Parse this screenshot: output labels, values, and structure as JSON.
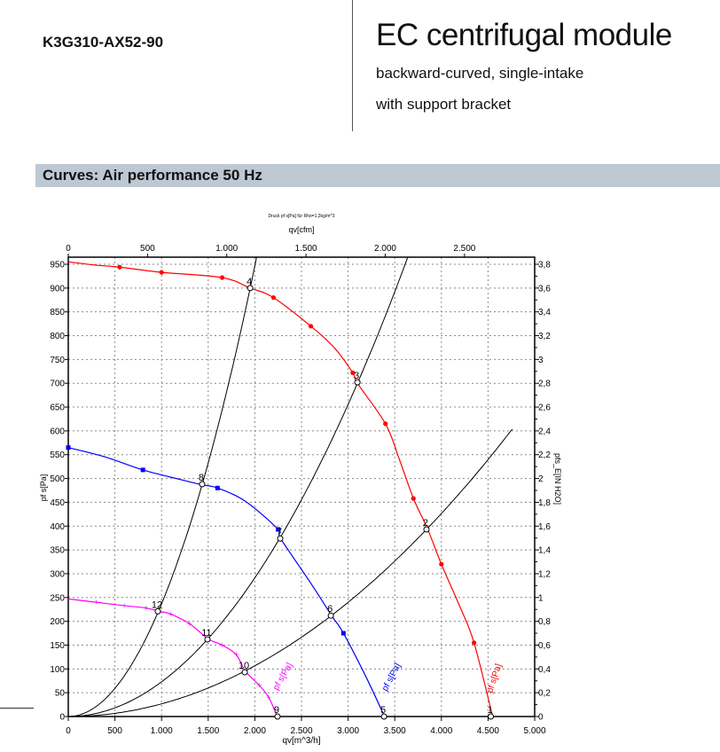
{
  "header": {
    "model": "K3G310-AX52-90",
    "title": "EC centrifugal module",
    "subtitle1": "backward-curved, single-intake",
    "subtitle2": "with support bracket"
  },
  "section": {
    "title": "Curves: Air performance 50 Hz"
  },
  "chart_data": {
    "type": "line",
    "title": "Druck pf s[Pa] für Rho=1,2kg/m^3",
    "xlabel": "qv[m^3/h]",
    "x2label": "qv[cfm]",
    "ylabel": "pf s[Pa]",
    "y2label": "pfs_E[IN H2O]",
    "xlim": [
      0,
      5000
    ],
    "ylim": [
      0,
      950
    ],
    "x2lim": [
      0,
      2943
    ],
    "y2lim": [
      0,
      3.8
    ],
    "xticks": [
      "0",
      "500",
      "1.000",
      "1.500",
      "2.000",
      "2.500",
      "3.000",
      "3.500",
      "4.000",
      "4.500",
      "5.000"
    ],
    "x2ticks": [
      "0",
      "500",
      "1.000",
      "1.500",
      "2.000",
      "2.500"
    ],
    "yticks": [
      "0",
      "50",
      "100",
      "150",
      "200",
      "250",
      "300",
      "350",
      "400",
      "450",
      "500",
      "550",
      "600",
      "650",
      "700",
      "750",
      "800",
      "850",
      "900",
      "950"
    ],
    "y2ticks": [
      "0",
      "0,2",
      "0,4",
      "0,6",
      "0,8",
      "1",
      "1,2",
      "1,4",
      "1,6",
      "1,8",
      "2",
      "2,2",
      "2,4",
      "2,6",
      "2,8",
      "3",
      "3,2",
      "3,4",
      "3,6",
      "3,8"
    ],
    "grid": true,
    "series": [
      {
        "name": "pf s[Pa]",
        "color": "#ff0000",
        "points": [
          [
            0,
            955
          ],
          [
            300,
            948
          ],
          [
            550,
            944
          ],
          [
            1000,
            933
          ],
          [
            1650,
            922
          ],
          [
            1950,
            900
          ],
          [
            2200,
            880
          ],
          [
            2600,
            820
          ],
          [
            2850,
            775
          ],
          [
            3050,
            722
          ],
          [
            3100,
            700
          ],
          [
            3400,
            615
          ],
          [
            3550,
            540
          ],
          [
            3700,
            458
          ],
          [
            3850,
            395
          ],
          [
            4000,
            320
          ],
          [
            4200,
            230
          ],
          [
            4350,
            155
          ],
          [
            4550,
            0
          ]
        ],
        "markers": [
          [
            550,
            944
          ],
          [
            1000,
            933
          ],
          [
            1650,
            922
          ],
          [
            2200,
            880
          ],
          [
            2600,
            820
          ],
          [
            3050,
            722
          ],
          [
            3400,
            615
          ],
          [
            3700,
            458
          ],
          [
            4000,
            320
          ],
          [
            4350,
            155
          ]
        ]
      },
      {
        "name": "pf s[Pa]",
        "color": "#0000ff",
        "points": [
          [
            0,
            565
          ],
          [
            400,
            545
          ],
          [
            800,
            518
          ],
          [
            1200,
            498
          ],
          [
            1430,
            487
          ],
          [
            1600,
            480
          ],
          [
            1900,
            452
          ],
          [
            2250,
            393
          ],
          [
            2280,
            373
          ],
          [
            2600,
            280
          ],
          [
            2830,
            210
          ],
          [
            2950,
            175
          ],
          [
            3200,
            80
          ],
          [
            3390,
            0
          ]
        ],
        "markers": [
          [
            0,
            565
          ],
          [
            800,
            518
          ],
          [
            1600,
            480
          ],
          [
            2250,
            393
          ],
          [
            2950,
            175
          ]
        ]
      },
      {
        "name": "pf s[Pa]",
        "color": "#ff00ff",
        "points": [
          [
            0,
            247
          ],
          [
            300,
            240
          ],
          [
            600,
            233
          ],
          [
            830,
            228
          ],
          [
            1000,
            220
          ],
          [
            1100,
            215
          ],
          [
            1300,
            195
          ],
          [
            1500,
            163
          ],
          [
            1650,
            150
          ],
          [
            1800,
            130
          ],
          [
            1900,
            95
          ],
          [
            2050,
            65
          ],
          [
            2150,
            40
          ],
          [
            2240,
            0
          ]
        ],
        "markers": [
          [
            300,
            240
          ],
          [
            600,
            233
          ],
          [
            830,
            228
          ],
          [
            1100,
            215
          ],
          [
            1300,
            195
          ],
          [
            1650,
            150
          ],
          [
            1800,
            130
          ],
          [
            2050,
            65
          ],
          [
            2150,
            40
          ]
        ]
      }
    ],
    "system_curves": [
      {
        "through": [
          1950,
          900
        ],
        "qmax": 2020
      },
      {
        "through": [
          3100,
          700
        ],
        "qmax": 3640
      },
      {
        "through": [
          3850,
          395
        ],
        "qmax": 4760
      }
    ],
    "operating_points": [
      {
        "label": "1",
        "q": 4530,
        "p": 0
      },
      {
        "label": "2",
        "q": 3840,
        "p": 393
      },
      {
        "label": "3",
        "q": 3100,
        "p": 702
      },
      {
        "label": "4",
        "q": 1950,
        "p": 900
      },
      {
        "label": "5",
        "q": 3385,
        "p": 0
      },
      {
        "label": "6",
        "q": 2815,
        "p": 212
      },
      {
        "label": "7",
        "q": 2272,
        "p": 374
      },
      {
        "label": "8",
        "q": 1435,
        "p": 488
      },
      {
        "label": "9",
        "q": 2243,
        "p": 0
      },
      {
        "label": "10",
        "q": 1892,
        "p": 93
      },
      {
        "label": "11",
        "q": 1492,
        "p": 162
      },
      {
        "label": "12",
        "q": 960,
        "p": 221
      }
    ]
  }
}
